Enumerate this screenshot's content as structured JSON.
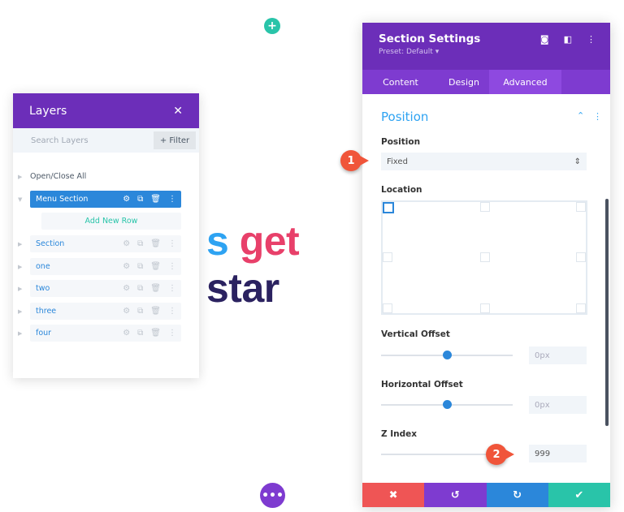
{
  "hero": {
    "part1": "s ",
    "part2": "get ",
    "part3": "star"
  },
  "colors": {
    "purple": "#6c2eb9",
    "blue": "#2b87da",
    "green": "#29c4a9",
    "red": "#ef5555"
  },
  "layers": {
    "title": "Layers",
    "close": "✕",
    "search_placeholder": "Search Layers",
    "filter": "+ Filter",
    "open_close": "Open/Close All",
    "add_row": "Add New Row",
    "items": [
      {
        "label": "Menu Section",
        "selected": true
      },
      {
        "label": "Section"
      },
      {
        "label": "one"
      },
      {
        "label": "two"
      },
      {
        "label": "three"
      },
      {
        "label": "four"
      }
    ]
  },
  "settings": {
    "title": "Section Settings",
    "preset": "Preset: Default ▾",
    "tabs": [
      "Content",
      "Design",
      "Advanced"
    ],
    "active_tab": "Advanced",
    "group": "Position",
    "position_label": "Position",
    "position_value": "Fixed",
    "location_label": "Location",
    "vertical_label": "Vertical Offset",
    "vertical_value": "0px",
    "horizontal_label": "Horizontal Offset",
    "horizontal_value": "0px",
    "z_label": "Z Index",
    "z_value": "999"
  },
  "badges": [
    "1",
    "2"
  ]
}
